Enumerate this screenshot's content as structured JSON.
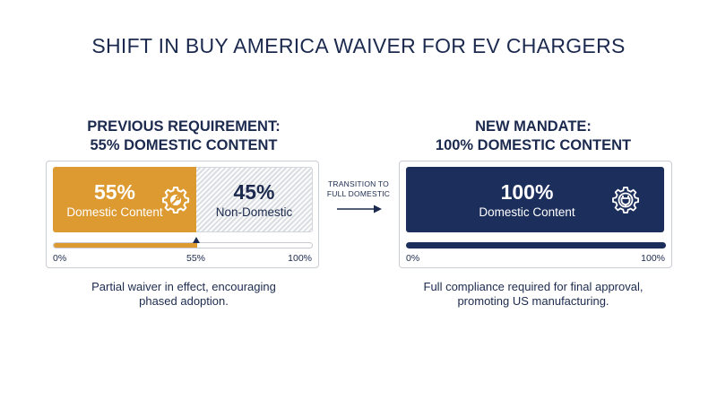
{
  "title": "SHIFT IN BUY AMERICA WAIVER FOR EV CHARGERS",
  "previous": {
    "heading_line1": "PREVIOUS REQUIREMENT:",
    "heading_line2": "55% DOMESTIC CONTENT",
    "domestic_value": "55%",
    "domestic_label": "Domestic Content",
    "nondomestic_value": "45%",
    "nondomestic_label": "Non-Domestic",
    "progress_percent": 55,
    "tick_start": "0%",
    "tick_marker": "55%",
    "tick_end": "100%",
    "caption_line1": "Partial waiver in effect, encouraging",
    "caption_line2": "phased adoption."
  },
  "transition": {
    "line1": "TRANSITION TO",
    "line2": "FULL DOMESTIC"
  },
  "new": {
    "heading_line1": "NEW MANDATE:",
    "heading_line2": "100% DOMESTIC CONTENT",
    "domestic_value": "100%",
    "domestic_label": "Domestic Content",
    "progress_percent": 100,
    "tick_start": "0%",
    "tick_end": "100%",
    "caption_line1": "Full compliance required for final approval,",
    "caption_line2": "promoting US manufacturing."
  },
  "icons": {
    "left_segment": "gear-wrench-icon",
    "right_segment": "gear-plug-icon",
    "transition": "arrow-right-icon"
  },
  "colors": {
    "navy": "#1c2f5c",
    "gold": "#dd9a31",
    "hatch": "#eceeef"
  },
  "chart_data": [
    {
      "type": "bar",
      "title": "PREVIOUS REQUIREMENT: 55% DOMESTIC CONTENT",
      "stacked": true,
      "categories": [
        "Domestic Content",
        "Non-Domestic"
      ],
      "values": [
        55,
        45
      ],
      "unit": "%",
      "xlim": [
        0,
        100
      ]
    },
    {
      "type": "bar",
      "title": "NEW MANDATE: 100% DOMESTIC CONTENT",
      "stacked": true,
      "categories": [
        "Domestic Content"
      ],
      "values": [
        100
      ],
      "unit": "%",
      "xlim": [
        0,
        100
      ]
    }
  ]
}
